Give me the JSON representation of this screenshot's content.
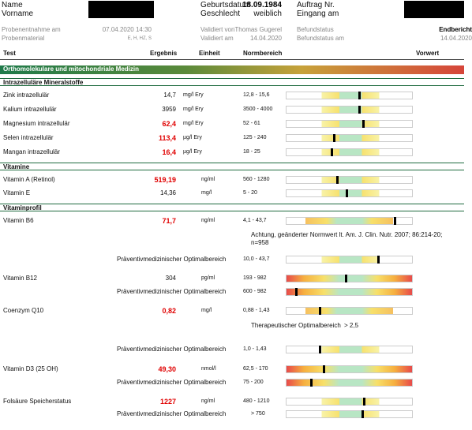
{
  "header": {
    "fields": [
      {
        "label": "Name",
        "value": null
      },
      {
        "label": "Vorname",
        "value": null
      },
      {
        "label": "Geburtsdatum",
        "value": "18.09.1984"
      },
      {
        "label": "Geschlecht",
        "value": "weiblich"
      },
      {
        "label": "Auftrag Nr.",
        "value": null
      },
      {
        "label": "Eingang am",
        "value": null
      },
      {
        "label": "Probenentnahme am",
        "value": "07.04.2020 14:30"
      },
      {
        "label": "Probenmaterial",
        "value": "E, H, HZ, S"
      },
      {
        "label": "Validiert von",
        "value": "Thomas Gugerel"
      },
      {
        "label": "Validiert am",
        "value": "14.04.2020"
      },
      {
        "label": "Befundstatus",
        "value": "Endbericht"
      },
      {
        "label": "Befundstatus am",
        "value": "14.04.2020"
      }
    ]
  },
  "table": {
    "columns": [
      "Test",
      "Ergebnis",
      "Einheit",
      "Normbereich",
      "Vorwert"
    ],
    "rows": [
      {
        "kind": "banner",
        "test": "Orthomolekulare und mitochondriale Medizin"
      },
      {
        "kind": "section",
        "test": "Intrazelluläre Mineralstoffe"
      },
      {
        "kind": "row",
        "test": "Zink intrazellulär",
        "result": "14,7",
        "unit": "mg/l Ery",
        "range": "12,8 - 15,6"
      },
      {
        "kind": "row",
        "test": "Kalium intrazellulär",
        "result": "3959",
        "unit": "mg/l Ery",
        "range": "3500 - 4000"
      },
      {
        "kind": "row",
        "test": "Magnesium intrazellulär",
        "result": "62,4",
        "unit": "mg/l Ery",
        "range": "52 - 61",
        "result_color": "#e00000"
      },
      {
        "kind": "row",
        "test": "Selen intrazellulär",
        "result": "113,4",
        "unit": "µg/l Ery",
        "range": "125 - 240",
        "result_color": "#e00000"
      },
      {
        "kind": "row",
        "test": "Mangan intrazellulär",
        "result": "16,4",
        "unit": "µg/l Ery",
        "range": "18 - 25",
        "result_color": "#e00000"
      },
      {
        "kind": "section",
        "test": "Vitamine"
      },
      {
        "kind": "row",
        "test": "Vitamin A (Retinol)",
        "result": "519,19",
        "unit": "ng/ml",
        "range": "560 - 1280",
        "result_color": "#e00000"
      },
      {
        "kind": "row",
        "test": "Vitamin E",
        "result": "14,36",
        "unit": "mg/l",
        "range": "5 - 20"
      },
      {
        "kind": "section",
        "test": "Vitaminprofil"
      },
      {
        "kind": "row",
        "test": "Vitamin B6",
        "result": "71,7",
        "unit": "ng/ml",
        "range": "4,1 - 43,7",
        "result_color": "#e00000"
      },
      {
        "kind": "note",
        "test": "Achtung, geänderter Normwert lt. Am. J. Clin. Nutr. 2007; 86:214-20; n=958"
      },
      {
        "kind": "sub",
        "test": "Präventivmedizinischer Optimalbereich",
        "range": "10,0 - 43,7"
      },
      {
        "kind": "row",
        "test": "Vitamin B12",
        "result": "304",
        "unit": "pg/ml",
        "range": "193 - 982"
      },
      {
        "kind": "sub",
        "test": "Präventivmedizinischer Optimalbereich",
        "range": "600 - 982"
      },
      {
        "kind": "row",
        "test": "Coenzym Q10",
        "result": "0,82",
        "unit": "mg/l",
        "range": "0,88 - 1,43",
        "result_color": "#e00000"
      },
      {
        "kind": "note",
        "test": "Therapeutischer Optimalbereich",
        "range": "> 2,5"
      },
      {
        "kind": "sub",
        "test": "Präventivmedizinischer Optimalbereich",
        "range": "1,0 - 1,43"
      },
      {
        "kind": "row",
        "test": "Vitamin D3 (25 OH)",
        "result": "49,30",
        "unit": "nmol/l",
        "range": "62,5 - 170",
        "result_color": "#e00000"
      },
      {
        "kind": "sub",
        "test": "Präventivmedizinischer Optimalbereich",
        "range": "75 - 200"
      },
      {
        "kind": "row",
        "test": "Folsäure Speicherstatus",
        "result": "1227",
        "unit": "ng/ml",
        "range": "480 - 1210",
        "result_color": "#e00000"
      },
      {
        "kind": "sub",
        "test": "Präventivmedizinischer Optimalbereich",
        "range": "> 750"
      }
    ]
  }
}
